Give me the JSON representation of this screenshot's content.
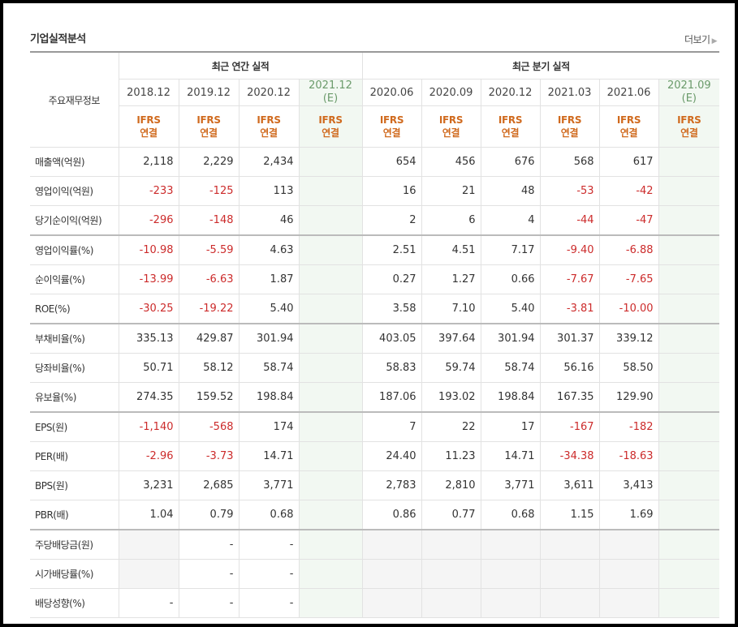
{
  "title": "기업실적분석",
  "more_label": "더보기",
  "corner_label": "주요재무정보",
  "groups": {
    "annual": "최근 연간 실적",
    "quarter": "최근 분기 실적"
  },
  "periods": [
    {
      "label": "2018.12",
      "est": false
    },
    {
      "label": "2019.12",
      "est": false
    },
    {
      "label": "2020.12",
      "est": false
    },
    {
      "label": "2021.12",
      "sub": "(E)",
      "est": true
    },
    {
      "label": "2020.06",
      "est": false
    },
    {
      "label": "2020.09",
      "est": false
    },
    {
      "label": "2020.12",
      "est": false
    },
    {
      "label": "2021.03",
      "est": false
    },
    {
      "label": "2021.06",
      "est": false
    },
    {
      "label": "2021.09",
      "sub": "(E)",
      "est": true
    }
  ],
  "ifrs": {
    "line1": "IFRS",
    "line2": "연결"
  },
  "rows": [
    {
      "label": "매출액(억원)",
      "values": [
        "2,118",
        "2,229",
        "2,434",
        "",
        "654",
        "456",
        "676",
        "568",
        "617",
        ""
      ]
    },
    {
      "label": "영업이익(억원)",
      "values": [
        "-233",
        "-125",
        "113",
        "",
        "16",
        "21",
        "48",
        "-53",
        "-42",
        ""
      ]
    },
    {
      "label": "당기순이익(억원)",
      "values": [
        "-296",
        "-148",
        "46",
        "",
        "2",
        "6",
        "4",
        "-44",
        "-47",
        ""
      ]
    },
    {
      "label": "영업이익률(%)",
      "sep": true,
      "values": [
        "-10.98",
        "-5.59",
        "4.63",
        "",
        "2.51",
        "4.51",
        "7.17",
        "-9.40",
        "-6.88",
        ""
      ]
    },
    {
      "label": "순이익률(%)",
      "values": [
        "-13.99",
        "-6.63",
        "1.87",
        "",
        "0.27",
        "1.27",
        "0.66",
        "-7.67",
        "-7.65",
        ""
      ]
    },
    {
      "label": "ROE(%)",
      "values": [
        "-30.25",
        "-19.22",
        "5.40",
        "",
        "3.58",
        "7.10",
        "5.40",
        "-3.81",
        "-10.00",
        ""
      ]
    },
    {
      "label": "부채비율(%)",
      "sep": true,
      "values": [
        "335.13",
        "429.87",
        "301.94",
        "",
        "403.05",
        "397.64",
        "301.94",
        "301.37",
        "339.12",
        ""
      ]
    },
    {
      "label": "당좌비율(%)",
      "values": [
        "50.71",
        "58.12",
        "58.74",
        "",
        "58.83",
        "59.74",
        "58.74",
        "56.16",
        "58.50",
        ""
      ]
    },
    {
      "label": "유보율(%)",
      "values": [
        "274.35",
        "159.52",
        "198.84",
        "",
        "187.06",
        "193.02",
        "198.84",
        "167.35",
        "129.90",
        ""
      ]
    },
    {
      "label": "EPS(원)",
      "sep": true,
      "values": [
        "-1,140",
        "-568",
        "174",
        "",
        "7",
        "22",
        "17",
        "-167",
        "-182",
        ""
      ]
    },
    {
      "label": "PER(배)",
      "values": [
        "-2.96",
        "-3.73",
        "14.71",
        "",
        "24.40",
        "11.23",
        "14.71",
        "-34.38",
        "-18.63",
        ""
      ]
    },
    {
      "label": "BPS(원)",
      "values": [
        "3,231",
        "2,685",
        "3,771",
        "",
        "2,783",
        "2,810",
        "3,771",
        "3,611",
        "3,413",
        ""
      ]
    },
    {
      "label": "PBR(배)",
      "values": [
        "1.04",
        "0.79",
        "0.68",
        "",
        "0.86",
        "0.77",
        "0.68",
        "1.15",
        "1.69",
        ""
      ]
    },
    {
      "label": "주당배당금(원)",
      "sep": true,
      "values": [
        "",
        "-",
        "-",
        "",
        "",
        "",
        "",
        "",
        "",
        ""
      ],
      "na": [
        0,
        4,
        5,
        6,
        7,
        8
      ]
    },
    {
      "label": "시가배당률(%)",
      "values": [
        "",
        "-",
        "-",
        "",
        "",
        "",
        "",
        "",
        "",
        ""
      ],
      "na": [
        0,
        4,
        5,
        6,
        7,
        8
      ]
    },
    {
      "label": "배당성향(%)",
      "values": [
        "-",
        "-",
        "-",
        "",
        "",
        "",
        "",
        "",
        "",
        ""
      ],
      "na": [
        4,
        5,
        6,
        7,
        8
      ]
    }
  ]
}
